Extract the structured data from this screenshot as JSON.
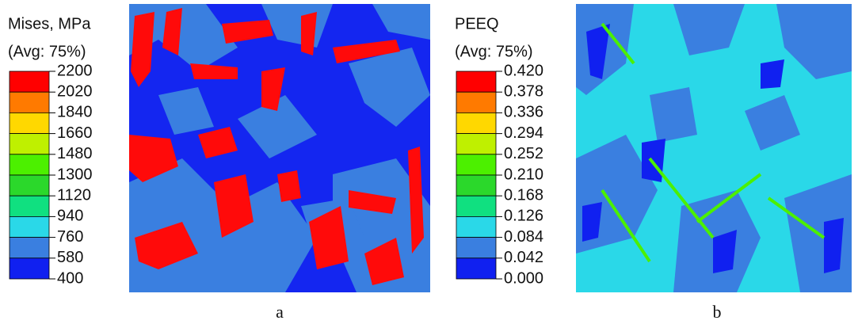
{
  "panels": [
    {
      "legend": {
        "title": "Mises, MPa",
        "subtitle": "(Avg: 75%)",
        "labels": [
          "2200",
          "2020",
          "1840",
          "1660",
          "1480",
          "1300",
          "1120",
          "940",
          "760",
          "580",
          "400"
        ],
        "colors": [
          "#ff0000",
          "#ff7a00",
          "#ffd800",
          "#bff000",
          "#4cf000",
          "#2bd82b",
          "#10e080",
          "#2ad8e8",
          "#3a7fe0",
          "#1020f0"
        ]
      },
      "caption": "a"
    },
    {
      "legend": {
        "title": "PEEQ",
        "subtitle": "(Avg: 75%)",
        "labels": [
          "0.420",
          "0.378",
          "0.336",
          "0.294",
          "0.252",
          "0.210",
          "0.168",
          "0.126",
          "0.084",
          "0.042",
          "0.000"
        ],
        "colors": [
          "#ff0000",
          "#ff7a00",
          "#ffd800",
          "#bff000",
          "#4cf000",
          "#2bd82b",
          "#10e080",
          "#2ad8e8",
          "#3a7fe0",
          "#1020f0"
        ]
      },
      "caption": "b"
    }
  ]
}
